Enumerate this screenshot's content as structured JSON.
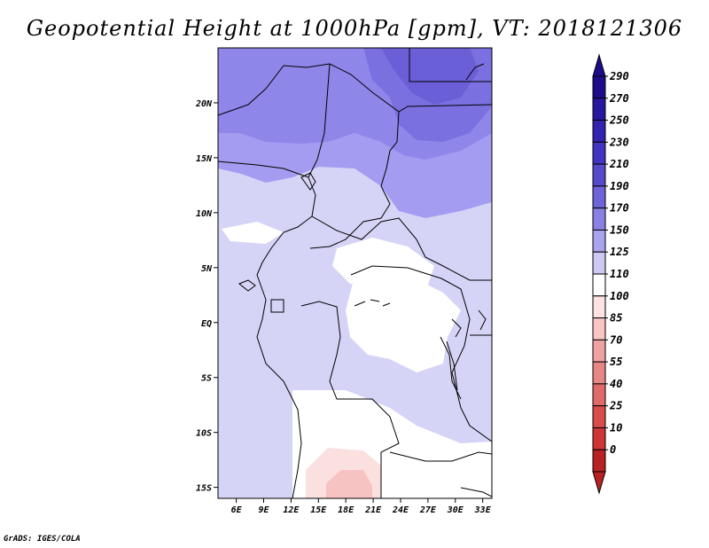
{
  "title": "Geopotential Height at 1000hPa [gpm], VT: 2018121306",
  "credit": "GrADS: IGES/COLA",
  "map": {
    "lat_range": [
      -16,
      25
    ],
    "lon_range": [
      4,
      34
    ],
    "lat_ticks": [
      {
        "value": 20,
        "label": "20N"
      },
      {
        "value": 15,
        "label": "15N"
      },
      {
        "value": 10,
        "label": "10N"
      },
      {
        "value": 5,
        "label": "5N"
      },
      {
        "value": 0,
        "label": "EQ"
      },
      {
        "value": -5,
        "label": "5S"
      },
      {
        "value": -10,
        "label": "10S"
      },
      {
        "value": -15,
        "label": "15S"
      }
    ],
    "lon_ticks": [
      {
        "value": 6,
        "label": "6E"
      },
      {
        "value": 9,
        "label": "9E"
      },
      {
        "value": 12,
        "label": "12E"
      },
      {
        "value": 15,
        "label": "15E"
      },
      {
        "value": 18,
        "label": "18E"
      },
      {
        "value": 21,
        "label": "21E"
      },
      {
        "value": 24,
        "label": "24E"
      },
      {
        "value": 27,
        "label": "27E"
      },
      {
        "value": 30,
        "label": "30E"
      },
      {
        "value": 33,
        "label": "33E"
      }
    ]
  },
  "colorbar": {
    "levels": [
      {
        "label": "290",
        "color": "#1c0c8a"
      },
      {
        "label": "270",
        "color": "#27179e"
      },
      {
        "label": "250",
        "color": "#3222b0"
      },
      {
        "label": "230",
        "color": "#4234c0"
      },
      {
        "label": "210",
        "color": "#5649cc"
      },
      {
        "label": "190",
        "color": "#6e63d8"
      },
      {
        "label": "170",
        "color": "#8a80e4"
      },
      {
        "label": "150",
        "color": "#aaa3ee"
      },
      {
        "label": "125",
        "color": "#ccc9f4"
      },
      {
        "label": "110",
        "color": "#ffffff"
      },
      {
        "label": "100",
        "color": "#fde2e2"
      },
      {
        "label": "85",
        "color": "#f8c4c4"
      },
      {
        "label": "70",
        "color": "#f0a1a1"
      },
      {
        "label": "55",
        "color": "#e88585"
      },
      {
        "label": "40",
        "color": "#e06a6a"
      },
      {
        "label": "25",
        "color": "#d84c4c"
      },
      {
        "label": "10",
        "color": "#ce3535"
      },
      {
        "label": "0",
        "color": "#b82222"
      }
    ],
    "top_color": "#1c0c8a",
    "bottom_color": "#b82222"
  }
}
